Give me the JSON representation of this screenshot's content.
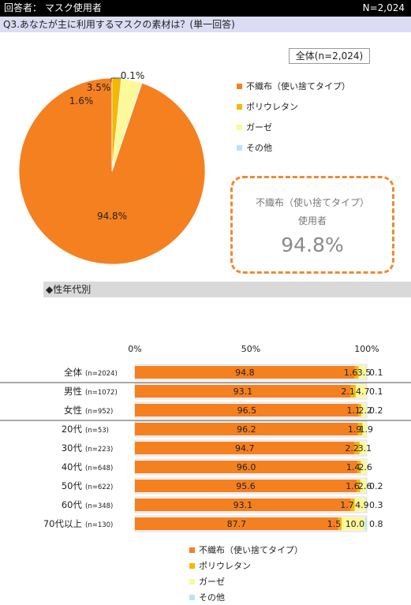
{
  "header": {
    "respondent": "回答者： マスク使用者",
    "n": "N=2,024"
  },
  "question": "Q3.あなたが主に利用するマスクの素材は？(単一回答)",
  "all_label": "全体(n=2,024)",
  "callout": {
    "line1": "不織布（使い捨てタイプ）",
    "line2": "使用者",
    "value": "94.8%"
  },
  "section_label": "◆性年代別",
  "colors": {
    "nonwoven": "#f5801f",
    "urethane": "#f5b700",
    "gauze": "#fdf99a",
    "other": "#b8e4f4",
    "bar_bg": "#f2f2f2"
  },
  "legend": [
    "不織布（使い捨てタイプ）",
    "ポリウレタン",
    "ガーゼ",
    "その他"
  ],
  "chart_data": [
    {
      "type": "pie",
      "labels": [
        "不織布（使い捨てタイプ）",
        "ポリウレタン",
        "ガーゼ",
        "その他"
      ],
      "values": [
        94.8,
        1.6,
        3.5,
        0.1
      ],
      "data_labels": [
        "94.8%",
        "1.6%",
        "3.5%",
        "0.1%"
      ]
    },
    {
      "type": "bar",
      "orientation": "horizontal",
      "stacked": true,
      "xlim": [
        0,
        100
      ],
      "ticks": [
        "0%",
        "50%",
        "100%"
      ],
      "categories": [
        "全体",
        "男性",
        "女性",
        "20代",
        "30代",
        "40代",
        "50代",
        "60代",
        "70代以上"
      ],
      "category_n": [
        "(n=2024)",
        "(n=1072)",
        "(n=952)",
        "(n=53)",
        "(n=223)",
        "(n=648)",
        "(n=622)",
        "(n=348)",
        "(n=130)"
      ],
      "series": [
        {
          "name": "不織布（使い捨てタイプ）",
          "values": [
            94.8,
            93.1,
            96.5,
            96.2,
            94.7,
            96.0,
            95.6,
            93.1,
            87.7
          ]
        },
        {
          "name": "ポリウレタン",
          "values": [
            1.6,
            2.1,
            1.1,
            1.9,
            2.2,
            1.4,
            1.6,
            1.7,
            1.5
          ]
        },
        {
          "name": "ガーゼ",
          "values": [
            3.5,
            4.7,
            2.2,
            1.9,
            3.1,
            2.6,
            2.6,
            4.9,
            10.0
          ]
        },
        {
          "name": "その他",
          "values": [
            0.1,
            0.1,
            0.2,
            0,
            0,
            0,
            0.2,
            0.3,
            0.8
          ]
        }
      ],
      "data_labels": [
        [
          "94.8",
          "1.6",
          "3.5",
          "0.1"
        ],
        [
          "93.1",
          "2.1",
          "4.7",
          "0.1"
        ],
        [
          "96.5",
          "1.1",
          "2.2",
          "0.2"
        ],
        [
          "96.2",
          "1.9",
          "1.9",
          ""
        ],
        [
          "94.7",
          "2.2",
          "3.1",
          ""
        ],
        [
          "96.0",
          "1.4",
          "2.6",
          ""
        ],
        [
          "95.6",
          "1.6",
          "2.6",
          "0.2"
        ],
        [
          "93.1",
          "1.7",
          "4.9",
          "0.3"
        ],
        [
          "87.7",
          "1.5",
          "10.0",
          "0.8"
        ]
      ]
    }
  ]
}
